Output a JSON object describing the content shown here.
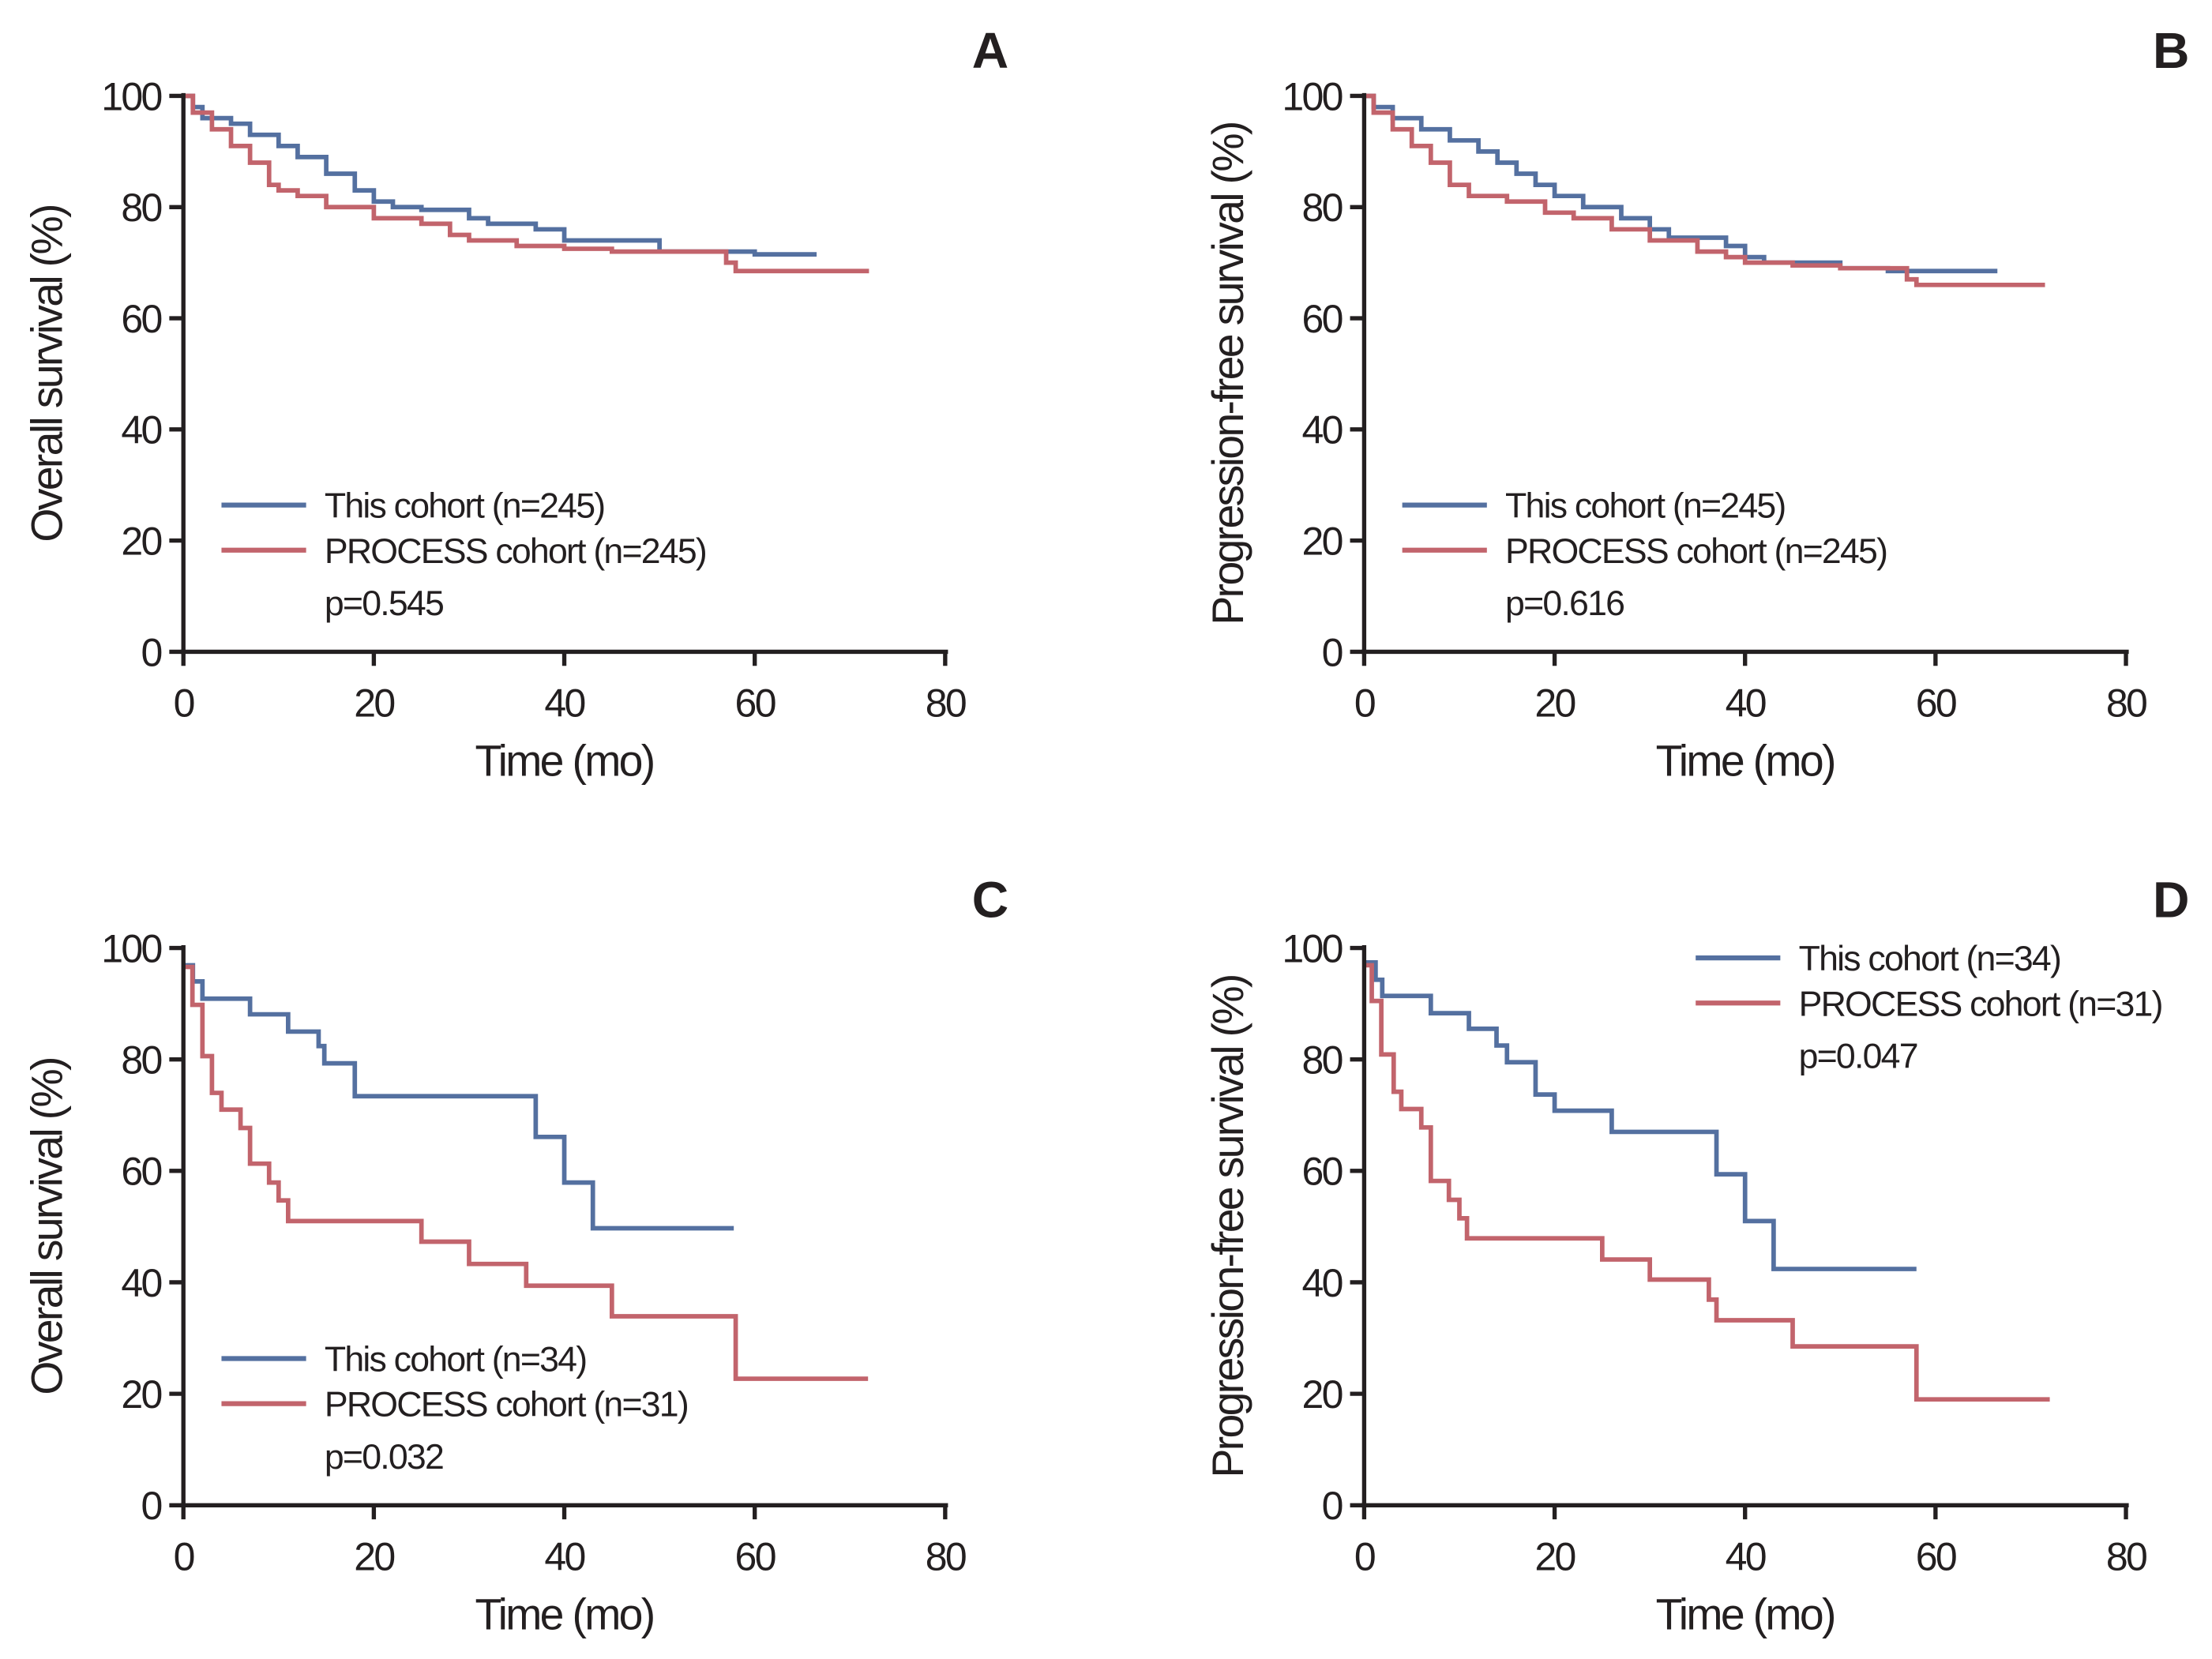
{
  "colors": {
    "this_cohort": "#5470a0",
    "process_cohort": "#c2646c",
    "axis": "#231f20"
  },
  "chart_data": [
    {
      "panel": "A",
      "type": "line",
      "step": true,
      "xlabel": "Time (mo)",
      "ylabel": "Overall survival (%)",
      "xlim": [
        0,
        80
      ],
      "ylim": [
        0,
        100
      ],
      "xticks": [
        "0",
        "20",
        "40",
        "60",
        "80"
      ],
      "yticks": [
        "0",
        "20",
        "40",
        "60",
        "80",
        "100"
      ],
      "legend_position": "bottom-left",
      "p_value": "p=0.545",
      "series": [
        {
          "name": "This cohort (n=245)",
          "color_key": "this_cohort",
          "points": [
            [
              0,
              100
            ],
            [
              1,
              98
            ],
            [
              2,
              96
            ],
            [
              5,
              95
            ],
            [
              7,
              93
            ],
            [
              10,
              91
            ],
            [
              12,
              89
            ],
            [
              15,
              86
            ],
            [
              18,
              83
            ],
            [
              20,
              81
            ],
            [
              22,
              80
            ],
            [
              25,
              79.5
            ],
            [
              30,
              78
            ],
            [
              32,
              77
            ],
            [
              37,
              76
            ],
            [
              40,
              74
            ],
            [
              50,
              72
            ],
            [
              60,
              71.5
            ],
            [
              66.5,
              71.5
            ]
          ]
        },
        {
          "name": "PROCESS cohort (n=245)",
          "color_key": "process_cohort",
          "points": [
            [
              0,
              100
            ],
            [
              1,
              97
            ],
            [
              3,
              94
            ],
            [
              5,
              91
            ],
            [
              7,
              88
            ],
            [
              9,
              84
            ],
            [
              10,
              83
            ],
            [
              12,
              82
            ],
            [
              15,
              80
            ],
            [
              20,
              78
            ],
            [
              25,
              77
            ],
            [
              28,
              75
            ],
            [
              30,
              74
            ],
            [
              35,
              73
            ],
            [
              40,
              72.5
            ],
            [
              45,
              72
            ],
            [
              55,
              72
            ],
            [
              57,
              70
            ],
            [
              58,
              68.5
            ],
            [
              72,
              68.5
            ]
          ]
        }
      ]
    },
    {
      "panel": "B",
      "type": "line",
      "step": true,
      "xlabel": "Time (mo)",
      "ylabel": "Progression-free survival (%)",
      "xlim": [
        0,
        80
      ],
      "ylim": [
        0,
        100
      ],
      "xticks": [
        "0",
        "20",
        "40",
        "60",
        "80"
      ],
      "yticks": [
        "0",
        "20",
        "40",
        "60",
        "80",
        "100"
      ],
      "legend_position": "bottom-left",
      "p_value": "p=0.616",
      "series": [
        {
          "name": "This cohort (n=245)",
          "color_key": "this_cohort",
          "points": [
            [
              0,
              100
            ],
            [
              1,
              98
            ],
            [
              3,
              96
            ],
            [
              6,
              94
            ],
            [
              9,
              92
            ],
            [
              12,
              90
            ],
            [
              14,
              88
            ],
            [
              16,
              86
            ],
            [
              18,
              84
            ],
            [
              20,
              82
            ],
            [
              23,
              80
            ],
            [
              27,
              78
            ],
            [
              30,
              76
            ],
            [
              32,
              74.5
            ],
            [
              38,
              73
            ],
            [
              40,
              71
            ],
            [
              42,
              70
            ],
            [
              50,
              69
            ],
            [
              55,
              68.5
            ],
            [
              66.5,
              68.5
            ]
          ]
        },
        {
          "name": "PROCESS cohort (n=245)",
          "color_key": "process_cohort",
          "points": [
            [
              0,
              100
            ],
            [
              1,
              97
            ],
            [
              3,
              94
            ],
            [
              5,
              91
            ],
            [
              7,
              88
            ],
            [
              9,
              84
            ],
            [
              11,
              82
            ],
            [
              15,
              81
            ],
            [
              19,
              79
            ],
            [
              22,
              78
            ],
            [
              26,
              76
            ],
            [
              30,
              74
            ],
            [
              35,
              72
            ],
            [
              38,
              71
            ],
            [
              40,
              70
            ],
            [
              45,
              69.5
            ],
            [
              50,
              69
            ],
            [
              57,
              67
            ],
            [
              58,
              66
            ],
            [
              71.5,
              66
            ]
          ]
        }
      ]
    },
    {
      "panel": "C",
      "type": "line",
      "step": true,
      "xlabel": "Time (mo)",
      "ylabel": "Overall survival (%)",
      "xlim": [
        0,
        80
      ],
      "ylim": [
        0,
        100
      ],
      "xticks": [
        "0",
        "20",
        "40",
        "60",
        "80"
      ],
      "yticks": [
        "0",
        "20",
        "40",
        "60",
        "80",
        "100"
      ],
      "legend_position": "bottom-left",
      "p_value": "p=0.032",
      "series": [
        {
          "name": "This cohort (n=34)",
          "color_key": "this_cohort",
          "points": [
            [
              0,
              96.9
            ],
            [
              1,
              94
            ],
            [
              2,
              90.9
            ],
            [
              7,
              88.1
            ],
            [
              11,
              85
            ],
            [
              14.2,
              82.4
            ],
            [
              14.8,
              79.3
            ],
            [
              18,
              73.4
            ],
            [
              37,
              66.1
            ],
            [
              40,
              57.9
            ],
            [
              43,
              49.7
            ],
            [
              57.8,
              49.7
            ]
          ]
        },
        {
          "name": "PROCESS cohort (n=31)",
          "color_key": "process_cohort",
          "points": [
            [
              0,
              96.6
            ],
            [
              0.95,
              89.8
            ],
            [
              2,
              80.6
            ],
            [
              3,
              74
            ],
            [
              4,
              71
            ],
            [
              6,
              67.7
            ],
            [
              7,
              61.3
            ],
            [
              9,
              57.9
            ],
            [
              10,
              54.7
            ],
            [
              11,
              51
            ],
            [
              25,
              47.3
            ],
            [
              30,
              43.3
            ],
            [
              36,
              39.4
            ],
            [
              45,
              33.9
            ],
            [
              58,
              22.7
            ],
            [
              71.9,
              22.7
            ]
          ]
        }
      ]
    },
    {
      "panel": "D",
      "type": "line",
      "step": true,
      "xlabel": "Time (mo)",
      "ylabel": "Progression-free survival (%)",
      "xlim": [
        0,
        80
      ],
      "ylim": [
        0,
        100
      ],
      "xticks": [
        "0",
        "20",
        "40",
        "60",
        "80"
      ],
      "yticks": [
        "0",
        "20",
        "40",
        "60",
        "80",
        "100"
      ],
      "legend_position": "top-right",
      "p_value": "p=0.047",
      "series": [
        {
          "name": "This cohort (n=34)",
          "color_key": "this_cohort",
          "points": [
            [
              0,
              97.4
            ],
            [
              1.2,
              94.3
            ],
            [
              1.9,
              91.4
            ],
            [
              7,
              88.3
            ],
            [
              11,
              85.5
            ],
            [
              13.9,
              82.5
            ],
            [
              15,
              79.5
            ],
            [
              18,
              73.7
            ],
            [
              20,
              70.8
            ],
            [
              26,
              67
            ],
            [
              37,
              59.4
            ],
            [
              40,
              51
            ],
            [
              43,
              42.4
            ],
            [
              58,
              42.4
            ]
          ]
        },
        {
          "name": "PROCESS cohort (n=31)",
          "color_key": "process_cohort",
          "points": [
            [
              0,
              96.9
            ],
            [
              0.8,
              90.5
            ],
            [
              1.8,
              80.9
            ],
            [
              3.1,
              74.2
            ],
            [
              3.9,
              71.1
            ],
            [
              6,
              67.8
            ],
            [
              7,
              58.2
            ],
            [
              8.9,
              54.8
            ],
            [
              10,
              51.5
            ],
            [
              10.8,
              47.9
            ],
            [
              25,
              44.1
            ],
            [
              30,
              40.5
            ],
            [
              36.2,
              36.9
            ],
            [
              37,
              33.2
            ],
            [
              45,
              28.5
            ],
            [
              58,
              19
            ],
            [
              72,
              19
            ]
          ]
        }
      ]
    }
  ]
}
